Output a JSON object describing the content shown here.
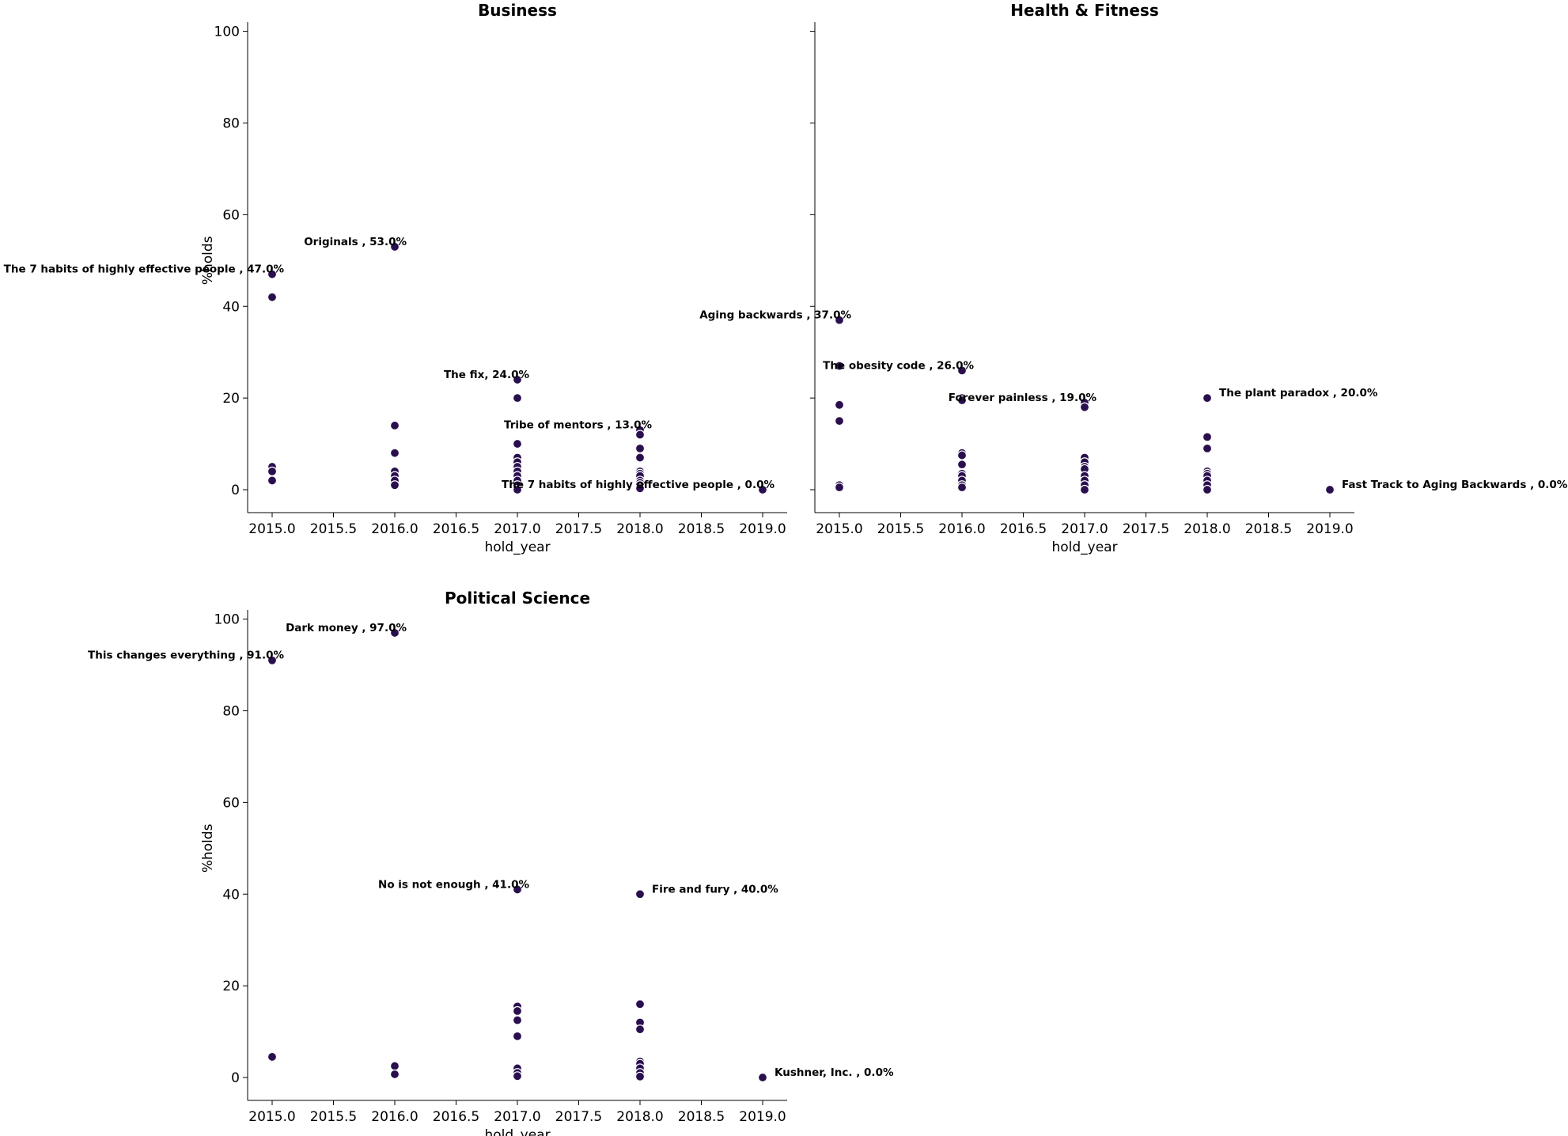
{
  "chart_data": [
    {
      "type": "scatter",
      "title": "Business",
      "xlabel": "hold_year",
      "ylabel": "%holds",
      "xlim": [
        2014.8,
        2019.2
      ],
      "ylim": [
        -5,
        102
      ],
      "xticks": [
        "2015.0",
        "2015.5",
        "2016.0",
        "2016.5",
        "2017.0",
        "2017.5",
        "2018.0",
        "2018.5",
        "2019.0"
      ],
      "yticks": [
        "0",
        "20",
        "40",
        "60",
        "80",
        "100"
      ],
      "grid": false,
      "marker_color": "#2a0f4e",
      "points": [
        {
          "x": 2015,
          "y": 47
        },
        {
          "x": 2015,
          "y": 42
        },
        {
          "x": 2015,
          "y": 5
        },
        {
          "x": 2015,
          "y": 4
        },
        {
          "x": 2015,
          "y": 2
        },
        {
          "x": 2016,
          "y": 53
        },
        {
          "x": 2016,
          "y": 14
        },
        {
          "x": 2016,
          "y": 8
        },
        {
          "x": 2016,
          "y": 4
        },
        {
          "x": 2016,
          "y": 3
        },
        {
          "x": 2016,
          "y": 2
        },
        {
          "x": 2016,
          "y": 1
        },
        {
          "x": 2017,
          "y": 24
        },
        {
          "x": 2017,
          "y": 20
        },
        {
          "x": 2017,
          "y": 10
        },
        {
          "x": 2017,
          "y": 7
        },
        {
          "x": 2017,
          "y": 6
        },
        {
          "x": 2017,
          "y": 5
        },
        {
          "x": 2017,
          "y": 4
        },
        {
          "x": 2017,
          "y": 3
        },
        {
          "x": 2017,
          "y": 2
        },
        {
          "x": 2017,
          "y": 1
        },
        {
          "x": 2017,
          "y": 0
        },
        {
          "x": 2018,
          "y": 13
        },
        {
          "x": 2018,
          "y": 12
        },
        {
          "x": 2018,
          "y": 9
        },
        {
          "x": 2018,
          "y": 7
        },
        {
          "x": 2018,
          "y": 4
        },
        {
          "x": 2018,
          "y": 3.5
        },
        {
          "x": 2018,
          "y": 3
        },
        {
          "x": 2018,
          "y": 2
        },
        {
          "x": 2018,
          "y": 1.5
        },
        {
          "x": 2018,
          "y": 1
        },
        {
          "x": 2018,
          "y": 0.3
        },
        {
          "x": 2019,
          "y": 0
        }
      ],
      "annotations": [
        {
          "text": "Originals , 53.0%",
          "x": 2016,
          "y": 53,
          "align": "end"
        },
        {
          "text": "The 7 habits of highly effective people , 47.0%",
          "x": 2015,
          "y": 47,
          "align": "end"
        },
        {
          "text": "The fix, 24.0%",
          "x": 2017,
          "y": 24,
          "align": "end"
        },
        {
          "text": "Tribe of mentors , 13.0%",
          "x": 2018,
          "y": 13,
          "align": "end"
        },
        {
          "text": "The 7 habits of highly effective people , 0.0%",
          "x": 2019,
          "y": 0,
          "align": "end"
        }
      ]
    },
    {
      "type": "scatter",
      "title": "Health & Fitness",
      "xlabel": "hold_year",
      "ylabel": "",
      "xlim": [
        2014.8,
        2019.2
      ],
      "ylim": [
        -5,
        102
      ],
      "xticks": [
        "2015.0",
        "2015.5",
        "2016.0",
        "2016.5",
        "2017.0",
        "2017.5",
        "2018.0",
        "2018.5",
        "2019.0"
      ],
      "yticks": [],
      "grid": false,
      "marker_color": "#2a0f4e",
      "points": [
        {
          "x": 2015,
          "y": 37
        },
        {
          "x": 2015,
          "y": 27
        },
        {
          "x": 2015,
          "y": 18.5
        },
        {
          "x": 2015,
          "y": 15
        },
        {
          "x": 2015,
          "y": 1
        },
        {
          "x": 2015,
          "y": 0.5
        },
        {
          "x": 2016,
          "y": 26
        },
        {
          "x": 2016,
          "y": 20
        },
        {
          "x": 2016,
          "y": 19.5
        },
        {
          "x": 2016,
          "y": 8
        },
        {
          "x": 2016,
          "y": 7.5
        },
        {
          "x": 2016,
          "y": 5.5
        },
        {
          "x": 2016,
          "y": 3.5
        },
        {
          "x": 2016,
          "y": 3
        },
        {
          "x": 2016,
          "y": 2
        },
        {
          "x": 2016,
          "y": 1
        },
        {
          "x": 2016,
          "y": 0.5
        },
        {
          "x": 2017,
          "y": 19
        },
        {
          "x": 2017,
          "y": 18
        },
        {
          "x": 2017,
          "y": 7
        },
        {
          "x": 2017,
          "y": 6
        },
        {
          "x": 2017,
          "y": 5
        },
        {
          "x": 2017,
          "y": 4.5
        },
        {
          "x": 2017,
          "y": 3
        },
        {
          "x": 2017,
          "y": 2
        },
        {
          "x": 2017,
          "y": 1
        },
        {
          "x": 2017,
          "y": 0
        },
        {
          "x": 2018,
          "y": 20
        },
        {
          "x": 2018,
          "y": 11.5
        },
        {
          "x": 2018,
          "y": 9
        },
        {
          "x": 2018,
          "y": 4
        },
        {
          "x": 2018,
          "y": 3.5
        },
        {
          "x": 2018,
          "y": 3
        },
        {
          "x": 2018,
          "y": 2
        },
        {
          "x": 2018,
          "y": 1
        },
        {
          "x": 2018,
          "y": 0
        },
        {
          "x": 2019,
          "y": 0
        }
      ],
      "annotations": [
        {
          "text": "Aging backwards , 37.0%",
          "x": 2015,
          "y": 37,
          "align": "end"
        },
        {
          "text": "The obesity code , 26.0%",
          "x": 2016,
          "y": 26,
          "align": "end"
        },
        {
          "text": "Forever painless , 19.0%",
          "x": 2017,
          "y": 19,
          "align": "end"
        },
        {
          "text": "The plant paradox , 20.0%",
          "x": 2018,
          "y": 20,
          "align": "start"
        },
        {
          "text": "Fast Track to Aging Backwards , 0.0%",
          "x": 2019,
          "y": 0,
          "align": "start"
        }
      ]
    },
    {
      "type": "scatter",
      "title": "Political Science",
      "xlabel": "hold_year",
      "ylabel": "%holds",
      "xlim": [
        2014.8,
        2019.2
      ],
      "ylim": [
        -5,
        102
      ],
      "xticks": [
        "2015.0",
        "2015.5",
        "2016.0",
        "2016.5",
        "2017.0",
        "2017.5",
        "2018.0",
        "2018.5",
        "2019.0"
      ],
      "yticks": [
        "0",
        "20",
        "40",
        "60",
        "80",
        "100"
      ],
      "grid": false,
      "marker_color": "#2a0f4e",
      "points": [
        {
          "x": 2015,
          "y": 91
        },
        {
          "x": 2015,
          "y": 4.5
        },
        {
          "x": 2016,
          "y": 97
        },
        {
          "x": 2016,
          "y": 2.5
        },
        {
          "x": 2016,
          "y": 0.7
        },
        {
          "x": 2017,
          "y": 41
        },
        {
          "x": 2017,
          "y": 15.5
        },
        {
          "x": 2017,
          "y": 14.5
        },
        {
          "x": 2017,
          "y": 12.5
        },
        {
          "x": 2017,
          "y": 9
        },
        {
          "x": 2017,
          "y": 2
        },
        {
          "x": 2017,
          "y": 1
        },
        {
          "x": 2017,
          "y": 0.3
        },
        {
          "x": 2018,
          "y": 40
        },
        {
          "x": 2018,
          "y": 16
        },
        {
          "x": 2018,
          "y": 12
        },
        {
          "x": 2018,
          "y": 10.5
        },
        {
          "x": 2018,
          "y": 3.5
        },
        {
          "x": 2018,
          "y": 3
        },
        {
          "x": 2018,
          "y": 2
        },
        {
          "x": 2018,
          "y": 1
        },
        {
          "x": 2018,
          "y": 0.2
        },
        {
          "x": 2019,
          "y": 0
        }
      ],
      "annotations": [
        {
          "text": "Dark money , 97.0%",
          "x": 2016,
          "y": 97,
          "align": "end"
        },
        {
          "text": "This changes everything , 91.0%",
          "x": 2015,
          "y": 91,
          "align": "end"
        },
        {
          "text": "No is not enough , 41.0%",
          "x": 2017,
          "y": 41,
          "align": "end"
        },
        {
          "text": "Fire and fury , 40.0%",
          "x": 2018,
          "y": 40,
          "align": "start"
        },
        {
          "text": "Kushner, Inc. , 0.0%",
          "x": 2019,
          "y": 0,
          "align": "start"
        }
      ]
    }
  ]
}
